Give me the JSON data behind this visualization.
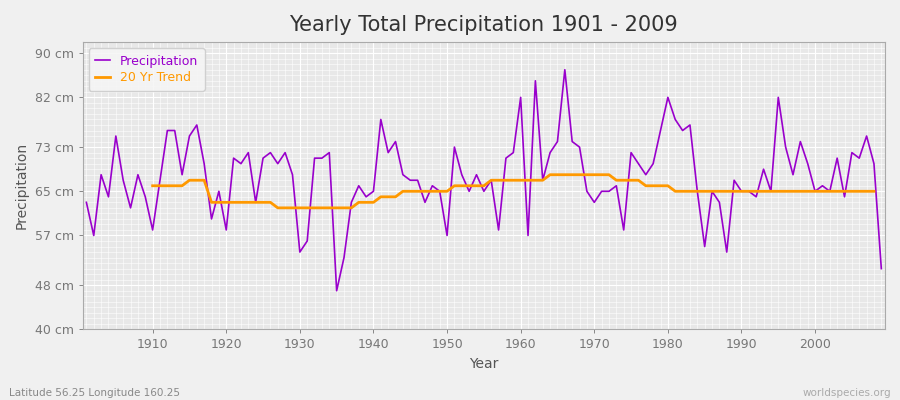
{
  "title": "Yearly Total Precipitation 1901 - 2009",
  "xlabel": "Year",
  "ylabel": "Precipitation",
  "lat_label": "Latitude 56.25 Longitude 160.25",
  "watermark": "worldspecies.org",
  "years": [
    1901,
    1902,
    1903,
    1904,
    1905,
    1906,
    1907,
    1908,
    1909,
    1910,
    1911,
    1912,
    1913,
    1914,
    1915,
    1916,
    1917,
    1918,
    1919,
    1920,
    1921,
    1922,
    1923,
    1924,
    1925,
    1926,
    1927,
    1928,
    1929,
    1930,
    1931,
    1932,
    1933,
    1934,
    1935,
    1936,
    1937,
    1938,
    1939,
    1940,
    1941,
    1942,
    1943,
    1944,
    1945,
    1946,
    1947,
    1948,
    1949,
    1950,
    1951,
    1952,
    1953,
    1954,
    1955,
    1956,
    1957,
    1958,
    1959,
    1960,
    1961,
    1962,
    1963,
    1964,
    1965,
    1966,
    1967,
    1968,
    1969,
    1970,
    1971,
    1972,
    1973,
    1974,
    1975,
    1976,
    1977,
    1978,
    1979,
    1980,
    1981,
    1982,
    1983,
    1984,
    1985,
    1986,
    1987,
    1988,
    1989,
    1990,
    1991,
    1992,
    1993,
    1994,
    1995,
    1996,
    1997,
    1998,
    1999,
    2000,
    2001,
    2002,
    2003,
    2004,
    2005,
    2006,
    2007,
    2008,
    2009
  ],
  "precipitation": [
    63,
    57,
    68,
    64,
    75,
    67,
    62,
    68,
    64,
    58,
    67,
    76,
    76,
    68,
    75,
    77,
    70,
    60,
    65,
    58,
    71,
    70,
    72,
    63,
    71,
    72,
    70,
    72,
    68,
    54,
    56,
    71,
    71,
    72,
    47,
    53,
    63,
    66,
    64,
    65,
    78,
    72,
    74,
    68,
    67,
    67,
    63,
    66,
    65,
    57,
    73,
    68,
    65,
    68,
    65,
    67,
    58,
    71,
    72,
    82,
    57,
    85,
    67,
    72,
    74,
    87,
    74,
    73,
    65,
    63,
    65,
    65,
    66,
    58,
    72,
    70,
    68,
    70,
    76,
    82,
    78,
    76,
    77,
    65,
    55,
    65,
    63,
    54,
    67,
    65,
    65,
    64,
    69,
    65,
    82,
    73,
    68,
    74,
    70,
    65,
    66,
    65,
    71,
    64,
    72,
    71,
    75,
    70,
    51
  ],
  "trend": [
    null,
    null,
    null,
    null,
    null,
    null,
    null,
    null,
    null,
    66,
    66,
    66,
    66,
    66,
    67,
    67,
    67,
    63,
    63,
    63,
    63,
    63,
    63,
    63,
    63,
    63,
    62,
    62,
    62,
    62,
    62,
    62,
    62,
    62,
    62,
    62,
    62,
    63,
    63,
    63,
    64,
    64,
    64,
    65,
    65,
    65,
    65,
    65,
    65,
    65,
    66,
    66,
    66,
    66,
    66,
    67,
    67,
    67,
    67,
    67,
    67,
    67,
    67,
    68,
    68,
    68,
    68,
    68,
    68,
    68,
    68,
    68,
    67,
    67,
    67,
    67,
    66,
    66,
    66,
    66,
    65,
    65,
    65,
    65,
    65,
    65,
    65,
    65,
    65,
    65,
    65,
    65,
    65,
    65,
    65,
    65,
    65,
    65,
    65,
    65,
    65,
    65,
    65,
    65,
    65,
    65,
    65,
    65,
    null
  ],
  "precip_color": "#9900cc",
  "trend_color": "#ff9900",
  "fig_bg_color": "#f0f0f0",
  "plot_bg_color": "#e8e8e8",
  "grid_color": "#ffffff",
  "ylim": [
    40,
    92
  ],
  "yticks": [
    40,
    48,
    57,
    65,
    73,
    82,
    90
  ],
  "ytick_labels": [
    "40 cm",
    "48 cm",
    "57 cm",
    "65 cm",
    "73 cm",
    "82 cm",
    "90 cm"
  ],
  "xticks": [
    1910,
    1920,
    1930,
    1940,
    1950,
    1960,
    1970,
    1980,
    1990,
    2000
  ],
  "title_fontsize": 15,
  "axis_label_fontsize": 10,
  "tick_fontsize": 9,
  "legend_fontsize": 9
}
